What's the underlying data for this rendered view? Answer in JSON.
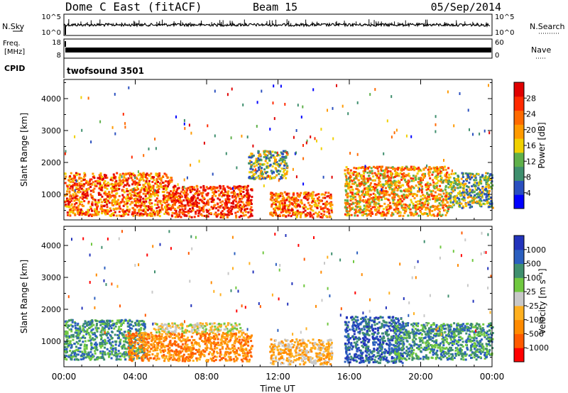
{
  "header": {
    "title": "Dome C East (fitACF)",
    "beam": "Beam 15",
    "date": "05/Sep/2014"
  },
  "panels": {
    "nsky": {
      "label": "N.Sky",
      "tick_top": "10^5",
      "tick_bottom": "10^0",
      "right_tick_top": "10^5",
      "right_tick_bottom": "10^0",
      "right_label": "N.Search"
    },
    "freq": {
      "label_line1": "Freq.",
      "label_line2": "[MHz]",
      "tick_top": "18",
      "tick_bottom": "8",
      "right_tick_top": "60",
      "right_tick_bottom": "0",
      "right_label": "Nave"
    },
    "cpid": {
      "label": "CPID",
      "value": "twofsound 3501"
    }
  },
  "colors": {
    "power": [
      "#0000ff",
      "#2a4fbf",
      "#3f8f6e",
      "#5fb04a",
      "#f0d000",
      "#ff9a00",
      "#ff6a00",
      "#ff2a00",
      "#e00000"
    ],
    "velocity": [
      "#ff0000",
      "#ff5a00",
      "#ff8a00",
      "#ffb020",
      "#c8c8c8",
      "#70c840",
      "#3f8f6e",
      "#2b5fbf",
      "#2233bb"
    ]
  },
  "chart_data": [
    {
      "type": "heatmap",
      "quantity": "power",
      "ylabel": "Slant Range [km]",
      "yticks": [
        "1000",
        "2000",
        "3000",
        "4000"
      ],
      "ylim": [
        200,
        4600
      ],
      "xlim": [
        0,
        24
      ],
      "colorbar": {
        "label": "Power [dB]",
        "ticks": [
          "4",
          "8",
          "12",
          "16",
          "20",
          "24",
          "28"
        ],
        "range": [
          0,
          30
        ]
      },
      "echo_regions": [
        {
          "t0": 0.0,
          "t1": 6.0,
          "r0": 350,
          "r1": 1700,
          "level": 22
        },
        {
          "t0": 6.0,
          "t1": 10.5,
          "r0": 300,
          "r1": 1300,
          "level": 27
        },
        {
          "t0": 10.3,
          "t1": 12.5,
          "r0": 1500,
          "r1": 2400,
          "level": 13
        },
        {
          "t0": 11.5,
          "t1": 15.0,
          "r0": 300,
          "r1": 1100,
          "level": 22
        },
        {
          "t0": 15.7,
          "t1": 21.5,
          "r0": 350,
          "r1": 1900,
          "level": 19
        },
        {
          "t0": 21.5,
          "t1": 24.0,
          "r0": 600,
          "r1": 1700,
          "level": 12
        }
      ]
    },
    {
      "type": "heatmap",
      "quantity": "velocity",
      "ylabel": "Slant Range [km]",
      "yticks": [
        "1000",
        "2000",
        "3000",
        "4000"
      ],
      "ylim": [
        200,
        4600
      ],
      "xlim": [
        0,
        24
      ],
      "xlabel": "Time UT",
      "xticks": [
        "00:00",
        "04:00",
        "08:00",
        "12:00",
        "16:00",
        "20:00",
        "00:00"
      ],
      "colorbar": {
        "label": "Velocity [m s⁻¹]",
        "ticks": [
          "-1000",
          "-500",
          "-100",
          "-25",
          "25",
          "100",
          "500",
          "1000"
        ]
      },
      "echo_regions": [
        {
          "t0": 0.0,
          "t1": 4.5,
          "r0": 450,
          "r1": 1700,
          "level": 6
        },
        {
          "t0": 3.5,
          "t1": 10.5,
          "r0": 400,
          "r1": 1300,
          "level": 2
        },
        {
          "t0": 5.0,
          "t1": 10.0,
          "r0": 1300,
          "r1": 1600,
          "level": 4
        },
        {
          "t0": 11.5,
          "t1": 15.0,
          "r0": 300,
          "r1": 1100,
          "level": 3
        },
        {
          "t0": 15.7,
          "t1": 19.0,
          "r0": 350,
          "r1": 1800,
          "level": 7
        },
        {
          "t0": 18.5,
          "t1": 24.0,
          "r0": 450,
          "r1": 1600,
          "level": 6
        }
      ]
    }
  ]
}
